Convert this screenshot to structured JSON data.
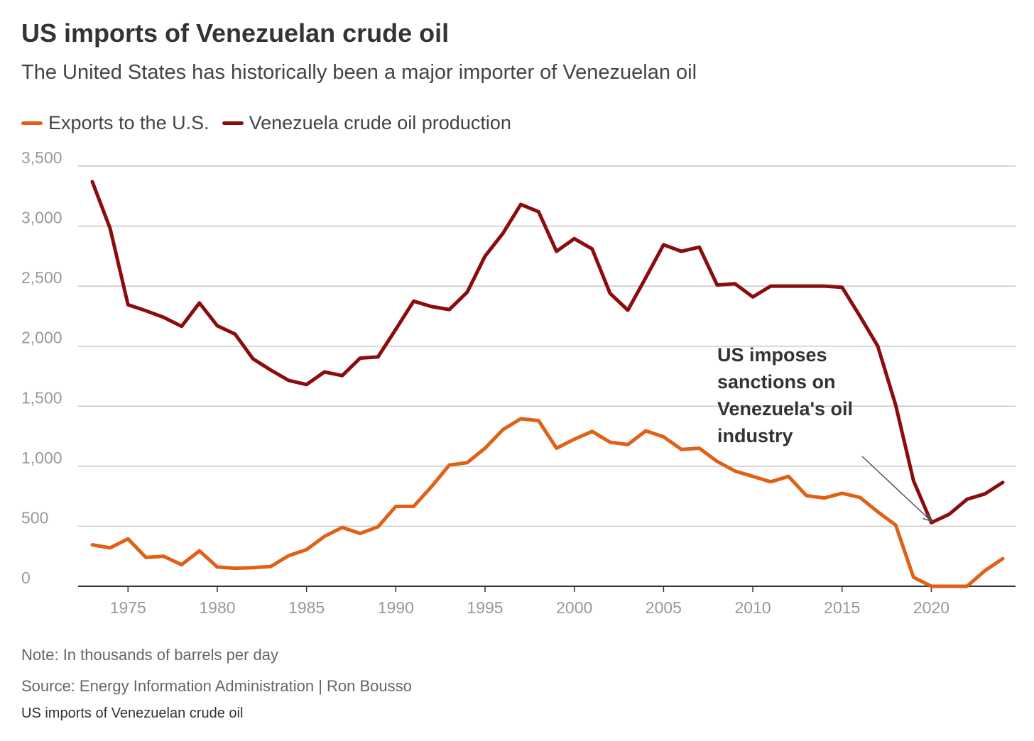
{
  "title": "US imports of Venezuelan crude oil",
  "subtitle": "The United States has historically been a major importer of Venezuelan oil",
  "note": "Note: In thousands of barrels per day",
  "source": "Source: Energy Information Administration | Ron Bousso",
  "caption": "US imports of Venezuelan crude oil",
  "colors": {
    "exports": "#e06116",
    "production": "#8b0c0c",
    "grid": "#c8c8c8",
    "axis": "#333333",
    "tick_label": "#999999"
  },
  "chart_data": {
    "type": "line",
    "x": [
      1973,
      1974,
      1975,
      1976,
      1977,
      1978,
      1979,
      1980,
      1981,
      1982,
      1983,
      1984,
      1985,
      1986,
      1987,
      1988,
      1989,
      1990,
      1991,
      1992,
      1993,
      1994,
      1995,
      1996,
      1997,
      1998,
      1999,
      2000,
      2001,
      2002,
      2003,
      2004,
      2005,
      2006,
      2007,
      2008,
      2009,
      2010,
      2011,
      2012,
      2013,
      2014,
      2015,
      2016,
      2017,
      2018,
      2019,
      2020,
      2021,
      2022,
      2023,
      2024
    ],
    "series": [
      {
        "name": "Exports to the U.S.",
        "color": "#e06116",
        "values": [
          345,
          320,
          395,
          240,
          250,
          180,
          295,
          160,
          150,
          155,
          165,
          255,
          305,
          415,
          490,
          440,
          495,
          665,
          665,
          830,
          1010,
          1030,
          1150,
          1305,
          1395,
          1380,
          1150,
          1225,
          1290,
          1200,
          1180,
          1295,
          1245,
          1140,
          1150,
          1040,
          960,
          915,
          870,
          915,
          755,
          735,
          775,
          740,
          620,
          510,
          75,
          0,
          0,
          0,
          130,
          230
        ]
      },
      {
        "name": "Venezuela crude oil production",
        "color": "#8b0c0c",
        "values": [
          3370,
          2980,
          2345,
          2295,
          2240,
          2165,
          2360,
          2170,
          2100,
          1895,
          1800,
          1715,
          1680,
          1785,
          1755,
          1900,
          1910,
          2140,
          2375,
          2330,
          2305,
          2450,
          2750,
          2940,
          3180,
          3120,
          2790,
          2895,
          2810,
          2440,
          2300,
          2570,
          2845,
          2790,
          2825,
          2510,
          2520,
          2410,
          2500,
          2500,
          2500,
          2500,
          2490,
          2250,
          2000,
          1510,
          880,
          530,
          600,
          725,
          770,
          865
        ]
      }
    ],
    "x_ticks": [
      1975,
      1980,
      1985,
      1990,
      1995,
      2000,
      2005,
      2010,
      2015,
      2020
    ],
    "y_ticks": [
      "0",
      "500",
      "1,000",
      "1,500",
      "2,000",
      "2,500",
      "3,000",
      "3,500"
    ],
    "y_tick_values": [
      0,
      500,
      1000,
      1500,
      2000,
      2500,
      3000,
      3500
    ],
    "xlim": [
      1973,
      2024
    ],
    "ylim": [
      0,
      3500
    ],
    "grid": "horizontal",
    "legend_position": "top-left",
    "annotation": {
      "lines": [
        "US imposes",
        "sanctions on",
        "Venezuela's oil",
        "industry"
      ],
      "target_x": 2020,
      "target_y": 530
    }
  }
}
